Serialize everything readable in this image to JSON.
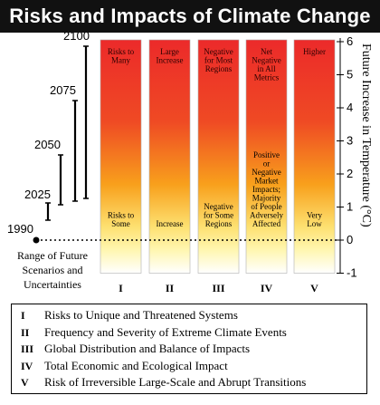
{
  "title": "Risks and Impacts of Climate Change",
  "years": [
    "2100",
    "2075",
    "2050",
    "2025",
    "1990"
  ],
  "range_label": [
    "Range of Future",
    "Scenarios and",
    "Uncertainties"
  ],
  "y_axis_title": "Future Increase in Temperature (°C)",
  "y_ticks": [
    "-1",
    "0",
    "1",
    "2",
    "3",
    "4",
    "5",
    "6"
  ],
  "columns": [
    {
      "roman": "I",
      "top": [
        "Risks to",
        "Many"
      ],
      "middle": [],
      "bottom": [
        "Risks to",
        "Some"
      ]
    },
    {
      "roman": "II",
      "top": [
        "Large",
        "Increase"
      ],
      "middle": [],
      "bottom": [
        "Increase"
      ]
    },
    {
      "roman": "III",
      "top": [
        "Negative",
        "for Most",
        "Regions"
      ],
      "middle": [],
      "bottom": [
        "Negative",
        "for Some",
        "Regions"
      ]
    },
    {
      "roman": "IV",
      "top": [
        "Net",
        "Negative",
        "in All",
        "Metrics"
      ],
      "middle": [
        "Positive",
        "or",
        "Negative",
        "Market",
        "Impacts;",
        "Majority",
        "of People",
        "Adversely",
        "Affected"
      ],
      "bottom": []
    },
    {
      "roman": "V",
      "top": [
        "Higher"
      ],
      "middle": [],
      "bottom": [
        "Very",
        "Low"
      ]
    }
  ],
  "legend": [
    {
      "num": "I",
      "text": "Risks to Unique and Threatened Systems"
    },
    {
      "num": "II",
      "text": "Frequency and Severity of Extreme Climate Events"
    },
    {
      "num": "III",
      "text": "Global Distribution and Balance of Impacts"
    },
    {
      "num": "IV",
      "text": "Total Economic and Ecological Impact"
    },
    {
      "num": "V",
      "text": "Risk of Irreversible Large-Scale and Abrupt Transitions"
    }
  ],
  "colors": {
    "high": "#ec2a2a",
    "mid": "#f7a21a",
    "low": "#fff6a8",
    "none": "#ffffff"
  }
}
